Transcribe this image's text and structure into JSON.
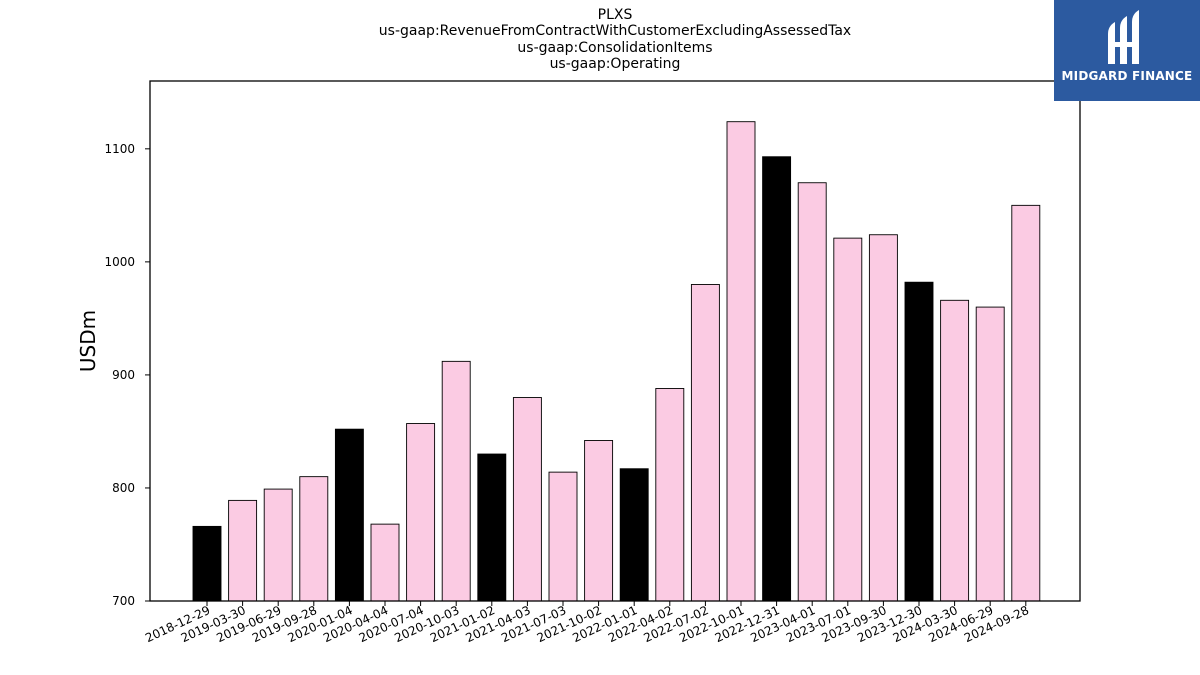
{
  "chart_data": {
    "type": "bar",
    "title_lines": [
      "PLXS",
      "us-gaap:RevenueFromContractWithCustomerExcludingAssessedTax",
      "us-gaap:ConsolidationItems",
      "us-gaap:Operating"
    ],
    "ylabel": "USDm",
    "xlabel": "",
    "ylim": [
      700,
      1160
    ],
    "yticks": [
      700,
      800,
      900,
      1000,
      1100
    ],
    "grid": false,
    "categories": [
      "2018-12-29",
      "2019-03-30",
      "2019-06-29",
      "2019-09-28",
      "2020-01-04",
      "2020-04-04",
      "2020-07-04",
      "2020-10-03",
      "2021-01-02",
      "2021-04-03",
      "2021-07-03",
      "2021-10-02",
      "2022-01-01",
      "2022-04-02",
      "2022-07-02",
      "2022-10-01",
      "2022-12-31",
      "2023-04-01",
      "2023-07-01",
      "2023-09-30",
      "2023-12-30",
      "2024-03-30",
      "2024-06-29",
      "2024-09-28"
    ],
    "values": [
      766,
      789,
      799,
      810,
      852,
      768,
      857,
      912,
      830,
      880,
      814,
      842,
      817,
      888,
      980,
      1124,
      1093,
      1070,
      1021,
      1024,
      982,
      966,
      960,
      1050
    ],
    "bar_kinds": [
      "q1",
      "other",
      "other",
      "other",
      "q1",
      "other",
      "other",
      "other",
      "q1",
      "other",
      "other",
      "other",
      "q1",
      "other",
      "other",
      "other",
      "q1",
      "other",
      "other",
      "other",
      "q1",
      "other",
      "other",
      "other"
    ],
    "colors": {
      "q1": "#000000",
      "other": "#fbcbe3",
      "edge": "#000000"
    }
  },
  "logo": {
    "text": "MIDGARD FINANCE",
    "background": "#2c5aa0"
  }
}
